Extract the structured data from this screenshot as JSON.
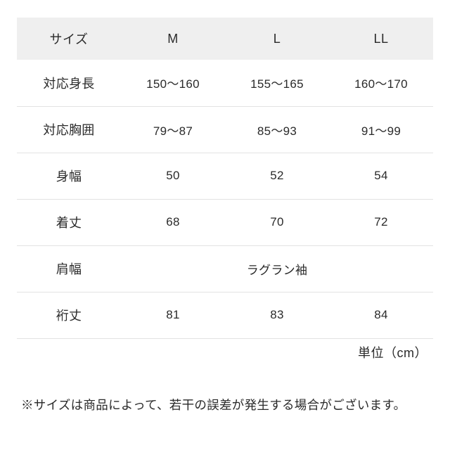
{
  "table": {
    "header_label": "サイズ",
    "sizes": [
      "M",
      "L",
      "LL"
    ],
    "rows": [
      {
        "label": "対応身長",
        "values": [
          "150～160",
          "155～165",
          "160～170"
        ]
      },
      {
        "label": "対応胸囲",
        "values": [
          "79～87",
          "85～93",
          "91～99"
        ]
      },
      {
        "label": "身幅",
        "values": [
          "50",
          "52",
          "54"
        ]
      },
      {
        "label": "着丈",
        "values": [
          "68",
          "70",
          "72"
        ]
      },
      {
        "label": "肩幅",
        "span_value": "ラグラン袖"
      },
      {
        "label": "裄丈",
        "values": [
          "81",
          "83",
          "84"
        ]
      }
    ],
    "unit_label": "単位（cm）"
  },
  "footnote": "※サイズは商品によって、若干の誤差が発生する場合がございます。",
  "colors": {
    "header_bg": "#efefef",
    "border": "#e2e2e2",
    "text": "#2a2a2a",
    "background": "#ffffff"
  }
}
